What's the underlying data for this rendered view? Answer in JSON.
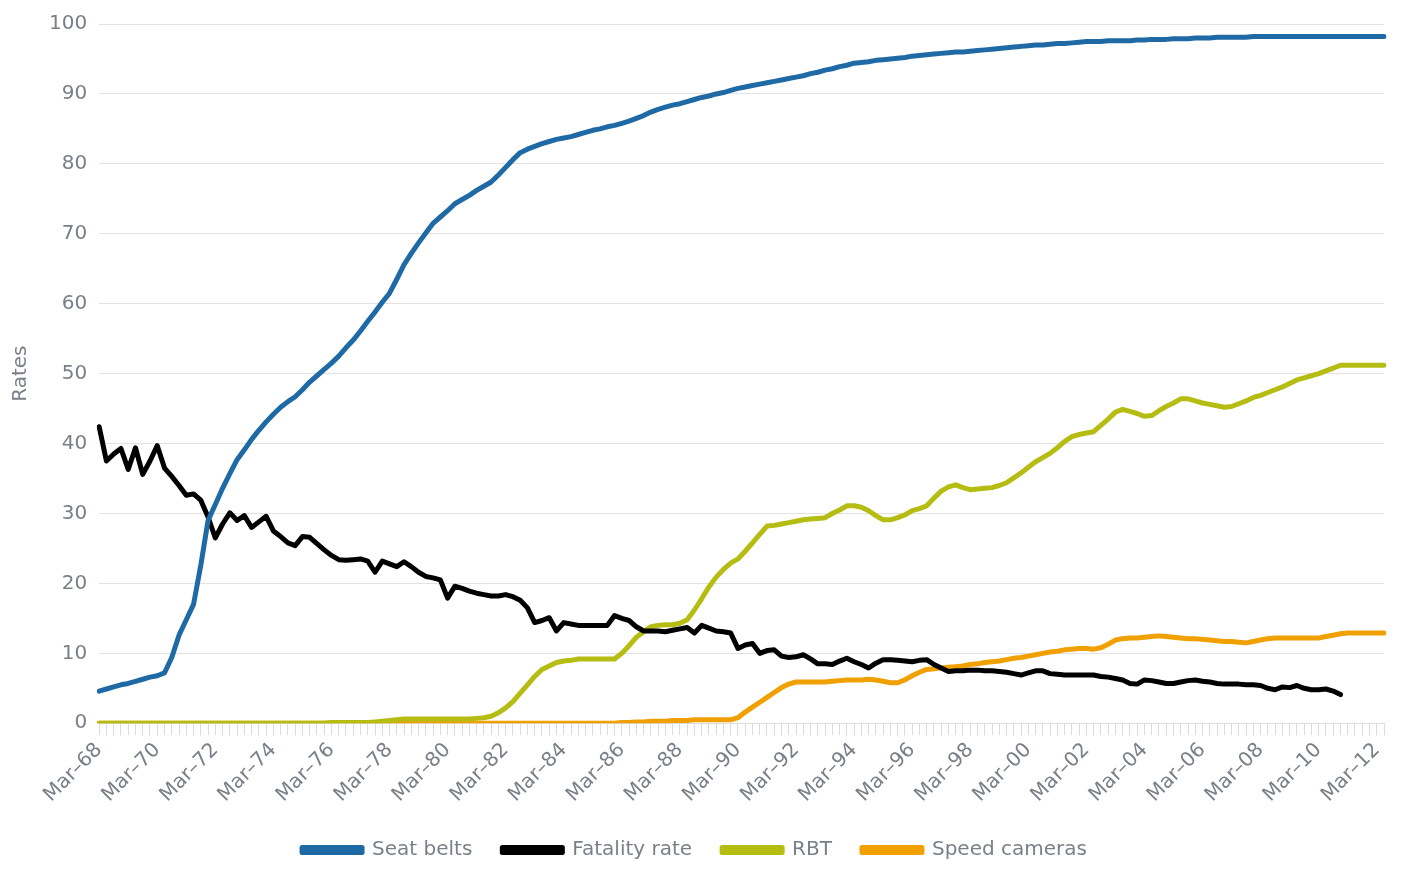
{
  "chart_data": {
    "type": "line",
    "ylabel": "Rates",
    "ylim": [
      0,
      100
    ],
    "yticks": [
      0,
      10,
      20,
      30,
      40,
      50,
      60,
      70,
      80,
      90,
      100
    ],
    "categories": [
      "Mar–68",
      null,
      null,
      null,
      null,
      null,
      null,
      null,
      "Mar–70",
      null,
      null,
      null,
      null,
      null,
      null,
      null,
      "Mar–72",
      null,
      null,
      null,
      null,
      null,
      null,
      null,
      "Mar–74",
      null,
      null,
      null,
      null,
      null,
      null,
      null,
      "Mar–76",
      null,
      null,
      null,
      null,
      null,
      null,
      null,
      "Mar–78",
      null,
      null,
      null,
      null,
      null,
      null,
      null,
      "Mar–80",
      null,
      null,
      null,
      null,
      null,
      null,
      null,
      "Mar–82",
      null,
      null,
      null,
      null,
      null,
      null,
      null,
      "Mar–84",
      null,
      null,
      null,
      null,
      null,
      null,
      null,
      "Mar–86",
      null,
      null,
      null,
      null,
      null,
      null,
      null,
      "Mar–88",
      null,
      null,
      null,
      null,
      null,
      null,
      null,
      "Mar–90",
      null,
      null,
      null,
      null,
      null,
      null,
      null,
      "Mar–92",
      null,
      null,
      null,
      null,
      null,
      null,
      null,
      "Mar–94",
      null,
      null,
      null,
      null,
      null,
      null,
      null,
      "Mar–96",
      null,
      null,
      null,
      null,
      null,
      null,
      null,
      "Mar–98",
      null,
      null,
      null,
      null,
      null,
      null,
      null,
      "Mar–00",
      null,
      null,
      null,
      null,
      null,
      null,
      null,
      "Mar–02",
      null,
      null,
      null,
      null,
      null,
      null,
      null,
      "Mar–04",
      null,
      null,
      null,
      null,
      null,
      null,
      null,
      "Mar–06",
      null,
      null,
      null,
      null,
      null,
      null,
      null,
      "Mar–08",
      null,
      null,
      null,
      null,
      null,
      null,
      null,
      "Mar–10",
      null,
      null,
      null,
      null,
      null,
      null,
      null,
      "Mar–12",
      null
    ],
    "grid": "y",
    "legend": "bottom",
    "line_style": "solid",
    "series": [
      {
        "name": "Seat belts",
        "color": "#1f6aa5",
        "values": [
          4.6,
          4.9,
          5.2,
          5.5,
          5.7,
          6.0,
          6.3,
          6.6,
          6.8,
          7.2,
          9.4,
          12.6,
          14.8,
          17,
          22.6,
          29,
          31.3,
          33.6,
          35.7,
          37.7,
          39.1,
          40.6,
          41.9,
          43.1,
          44.2,
          45.2,
          46,
          46.7,
          47.7,
          48.8,
          49.7,
          50.6,
          51.5,
          52.5,
          53.7,
          54.8,
          56.1,
          57.5,
          58.8,
          60.2,
          61.5,
          63.5,
          65.6,
          67.2,
          68.7,
          70.1,
          71.5,
          72.4,
          73.3,
          74.3,
          74.9,
          75.5,
          76.2,
          76.8,
          77.4,
          78.4,
          79.5,
          80.6,
          81.6,
          82.1,
          82.5,
          82.9,
          83.2,
          83.5,
          83.7,
          83.9,
          84.2,
          84.5,
          84.8,
          85,
          85.3,
          85.5,
          85.8,
          86.1,
          86.5,
          86.9,
          87.4,
          87.8,
          88.1,
          88.4,
          88.6,
          88.9,
          89.2,
          89.5,
          89.7,
          90,
          90.2,
          90.5,
          90.8,
          91,
          91.2,
          91.4,
          91.6,
          91.8,
          92,
          92.2,
          92.4,
          92.6,
          92.9,
          93.1,
          93.4,
          93.6,
          93.9,
          94.1,
          94.4,
          94.5,
          94.6,
          94.8,
          94.9,
          95,
          95.1,
          95.2,
          95.4,
          95.5,
          95.6,
          95.7,
          95.8,
          95.9,
          96,
          96,
          96.1,
          96.2,
          96.3,
          96.4,
          96.5,
          96.6,
          96.7,
          96.8,
          96.9,
          97,
          97,
          97.1,
          97.2,
          97.2,
          97.3,
          97.4,
          97.5,
          97.5,
          97.5,
          97.6,
          97.6,
          97.6,
          97.6,
          97.7,
          97.7,
          97.8,
          97.8,
          97.8,
          97.9,
          97.9,
          97.9,
          98,
          98,
          98,
          98.1,
          98.1,
          98.1,
          98.1,
          98.1,
          98.2,
          98.2,
          98.2,
          98.2,
          98.2,
          98.2,
          98.2,
          98.2,
          98.2,
          98.2,
          98.2,
          98.2,
          98.2,
          98.2,
          98.2,
          98.2,
          98.2,
          98.2,
          98.2
        ]
      },
      {
        "name": "Fatality rate",
        "color": "#000000",
        "values": [
          42.4,
          37.5,
          38.5,
          39.3,
          36.3,
          39.4,
          35.6,
          37.5,
          39.7,
          36.5,
          35.3,
          34,
          32.6,
          32.8,
          31.9,
          29.5,
          26.5,
          28.5,
          30.1,
          29,
          29.7,
          28,
          28.8,
          29.6,
          27.5,
          26.7,
          25.8,
          25.4,
          26.7,
          26.6,
          25.7,
          24.8,
          24,
          23.4,
          23.3,
          23.4,
          23.5,
          23.2,
          21.6,
          23.2,
          22.8,
          22.4,
          23.1,
          22.4,
          21.6,
          21,
          20.8,
          20.5,
          17.9,
          19.6,
          19.3,
          18.9,
          18.6,
          18.4,
          18.2,
          18.2,
          18.4,
          18.1,
          17.6,
          16.5,
          14.4,
          14.7,
          15.1,
          13.2,
          14.4,
          14.2,
          14,
          14,
          14,
          14,
          14,
          15.4,
          15,
          14.7,
          13.8,
          13.2,
          13.2,
          13.2,
          13.1,
          13.3,
          13.5,
          13.7,
          12.9,
          14,
          13.6,
          13.2,
          13.1,
          12.9,
          10.7,
          11.2,
          11.4,
          10,
          10.4,
          10.5,
          9.6,
          9.4,
          9.5,
          9.8,
          9.2,
          8.5,
          8.5,
          8.4,
          8.9,
          9.3,
          8.8,
          8.4,
          7.9,
          8.6,
          9.1,
          9.1,
          9,
          8.9,
          8.8,
          9,
          9.1,
          8.4,
          7.9,
          7.4,
          7.5,
          7.5,
          7.6,
          7.6,
          7.5,
          7.5,
          7.4,
          7.3,
          7.1,
          6.9,
          7.2,
          7.5,
          7.5,
          7.1,
          7,
          6.9,
          6.9,
          6.9,
          6.9,
          6.9,
          6.7,
          6.6,
          6.4,
          6.2,
          5.7,
          5.6,
          6.2,
          6.1,
          5.9,
          5.7,
          5.7,
          5.9,
          6.1,
          6.2,
          6,
          5.9,
          5.7,
          5.6,
          5.6,
          5.6,
          5.5,
          5.5,
          5.4,
          5,
          4.8,
          5.2,
          5.1,
          5.4,
          5,
          4.8,
          4.8,
          4.9,
          4.6,
          4.1,
          null,
          null,
          null,
          null,
          null,
          null
        ]
      },
      {
        "name": "RBT",
        "color": "#b5bd12",
        "values": [
          0,
          0,
          0,
          0,
          0,
          0,
          0,
          0,
          0,
          0,
          0,
          0,
          0,
          0,
          0,
          0,
          0,
          0,
          0,
          0,
          0,
          0,
          0,
          0,
          0,
          0,
          0,
          0,
          0,
          0,
          0,
          0,
          0.1,
          0.1,
          0.1,
          0.1,
          0.1,
          0.1,
          0.2,
          0.3,
          0.4,
          0.5,
          0.6,
          0.6,
          0.6,
          0.6,
          0.6,
          0.6,
          0.6,
          0.6,
          0.6,
          0.6,
          0.7,
          0.8,
          1,
          1.5,
          2.2,
          3.1,
          4.3,
          5.5,
          6.7,
          7.7,
          8.2,
          8.7,
          8.9,
          9,
          9.2,
          9.2,
          9.2,
          9.2,
          9.2,
          9.2,
          10,
          11.1,
          12.3,
          13.1,
          13.8,
          14,
          14.1,
          14.1,
          14.3,
          14.8,
          16.2,
          17.8,
          19.5,
          20.9,
          22,
          22.9,
          23.5,
          24.6,
          25.8,
          27,
          28.2,
          28.3,
          28.5,
          28.7,
          28.9,
          29.1,
          29.2,
          29.3,
          29.4,
          30,
          30.5,
          31.1,
          31.1,
          30.9,
          30.4,
          29.7,
          29.1,
          29.1,
          29.4,
          29.8,
          30.4,
          30.7,
          31.1,
          32.2,
          33.2,
          33.8,
          34.1,
          33.7,
          33.4,
          33.5,
          33.6,
          33.7,
          34,
          34.4,
          35.1,
          35.8,
          36.6,
          37.4,
          38,
          38.6,
          39.4,
          40.3,
          41,
          41.3,
          41.5,
          41.7,
          42.6,
          43.5,
          44.5,
          44.9,
          44.6,
          44.3,
          43.9,
          44,
          44.7,
          45.3,
          45.8,
          46.4,
          46.4,
          46.1,
          45.8,
          45.6,
          45.4,
          45.2,
          45.3,
          45.7,
          46.1,
          46.6,
          46.9,
          47.3,
          47.7,
          48.1,
          48.6,
          49.1,
          49.4,
          49.7,
          50,
          50.4,
          50.8,
          51.2,
          51.2,
          51.2,
          51.2,
          51.2,
          51.2,
          51.2
        ]
      },
      {
        "name": "Speed cameras",
        "color": "#f0a000",
        "values": [
          0,
          0,
          0,
          0,
          0,
          0,
          0,
          0,
          0,
          0,
          0,
          0,
          0,
          0,
          0,
          0,
          0,
          0,
          0,
          0,
          0,
          0,
          0,
          0,
          0,
          0,
          0,
          0,
          0,
          0,
          0,
          0,
          0,
          0,
          0,
          0,
          0,
          0,
          0,
          0,
          0,
          0,
          0,
          0,
          0,
          0,
          0,
          0,
          0,
          0,
          0,
          0,
          0,
          0,
          0,
          0,
          0,
          0,
          0,
          0,
          0,
          0,
          0,
          0,
          0,
          0,
          0,
          0,
          0,
          0,
          0,
          0,
          0.1,
          0.1,
          0.2,
          0.2,
          0.3,
          0.3,
          0.3,
          0.4,
          0.4,
          0.4,
          0.5,
          0.5,
          0.5,
          0.5,
          0.5,
          0.5,
          0.8,
          1.6,
          2.3,
          3,
          3.7,
          4.4,
          5.1,
          5.6,
          5.9,
          5.9,
          5.9,
          5.9,
          5.9,
          6,
          6.1,
          6.2,
          6.2,
          6.2,
          6.3,
          6.2,
          6,
          5.8,
          5.8,
          6.2,
          6.8,
          7.3,
          7.7,
          7.8,
          7.9,
          8,
          8.1,
          8.2,
          8.4,
          8.5,
          8.7,
          8.8,
          8.9,
          9.1,
          9.3,
          9.4,
          9.6,
          9.8,
          10,
          10.2,
          10.3,
          10.5,
          10.6,
          10.7,
          10.7,
          10.6,
          10.8,
          11.3,
          11.9,
          12.1,
          12.2,
          12.2,
          12.3,
          12.4,
          12.5,
          12.4,
          12.3,
          12.2,
          12.1,
          12.1,
          12,
          11.9,
          11.8,
          11.7,
          11.7,
          11.6,
          11.5,
          11.7,
          11.9,
          12.1,
          12.2,
          12.2,
          12.2,
          12.2,
          12.2,
          12.2,
          12.2,
          12.4,
          12.6,
          12.8,
          12.9,
          12.9,
          12.9,
          12.9,
          12.9,
          12.9
        ]
      }
    ]
  }
}
